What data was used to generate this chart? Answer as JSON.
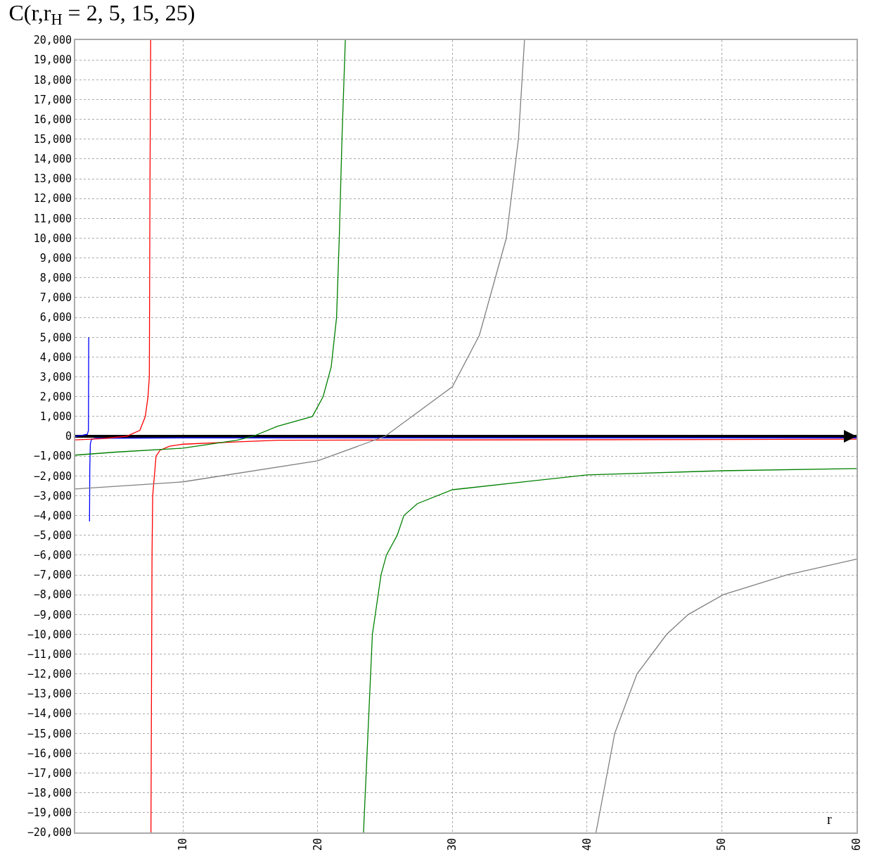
{
  "chart_data": {
    "type": "line",
    "title": "C(r,r$_{H}$ = 2, 5, 15, 25)",
    "xlabel": "r",
    "xlim": [
      2,
      60
    ],
    "xticks": [
      10,
      20,
      30,
      40,
      50,
      60
    ],
    "ylim": [
      -20000,
      20000
    ],
    "yticks": [
      {
        "value": 20000,
        "label": "20,000"
      },
      {
        "value": 19000,
        "label": "19,000"
      },
      {
        "value": 18000,
        "label": "18,000"
      },
      {
        "value": 17000,
        "label": "17,000"
      },
      {
        "value": 16000,
        "label": "16,000"
      },
      {
        "value": 15000,
        "label": "15,000"
      },
      {
        "value": 14000,
        "label": "14,000"
      },
      {
        "value": 13000,
        "label": "13,000"
      },
      {
        "value": 12000,
        "label": "12,000"
      },
      {
        "value": 11000,
        "label": "11,000"
      },
      {
        "value": 10000,
        "label": "10,000"
      },
      {
        "value": 9000,
        "label": "9,000"
      },
      {
        "value": 8000,
        "label": "8,000"
      },
      {
        "value": 7000,
        "label": "7,000"
      },
      {
        "value": 6000,
        "label": "6,000"
      },
      {
        "value": 5000,
        "label": "5,000"
      },
      {
        "value": 4000,
        "label": "4,000"
      },
      {
        "value": 3000,
        "label": "3,000"
      },
      {
        "value": 2000,
        "label": "2,000"
      },
      {
        "value": 1000,
        "label": "1,000"
      },
      0,
      {
        "value": -1000,
        "label": "−1,000"
      },
      {
        "value": -2000,
        "label": "−2,000"
      },
      {
        "value": -3000,
        "label": "−3,000"
      },
      {
        "value": -4000,
        "label": "−4,000"
      },
      {
        "value": -5000,
        "label": "−5,000"
      },
      {
        "value": -6000,
        "label": "−6,000"
      },
      {
        "value": -7000,
        "label": "−7,000"
      },
      {
        "value": -8000,
        "label": "−8,000"
      },
      {
        "value": -9000,
        "label": "−9,000"
      },
      {
        "value": -10000,
        "label": "−10,000"
      },
      {
        "value": -11000,
        "label": "−11,000"
      },
      {
        "value": -12000,
        "label": "−12,000"
      },
      {
        "value": -13000,
        "label": "−13,000"
      },
      {
        "value": -14000,
        "label": "−14,000"
      },
      {
        "value": -15000,
        "label": "−15,000"
      },
      {
        "value": -16000,
        "label": "−16,000"
      },
      {
        "value": -17000,
        "label": "−17,000"
      },
      {
        "value": -18000,
        "label": "−18,000"
      },
      {
        "value": -19000,
        "label": "−19,000"
      },
      {
        "value": -20000,
        "label": "−20,000"
      }
    ],
    "grid": true,
    "marker": "none",
    "line_style": "solid",
    "series": [
      {
        "color": "#0000ff",
        "x": [
          2,
          2.5,
          2.9,
          2.98,
          3.0,
          3.02,
          3.06,
          3.08,
          3.12,
          3.2,
          3.5,
          10,
          60
        ],
        "values": [
          0,
          50,
          100,
          300,
          5000,
          null,
          -4300,
          -1600,
          -400,
          -150,
          -100,
          -80,
          -80
        ]
      },
      {
        "color": "#ff0000",
        "x": [
          2,
          4,
          5.8,
          6.8,
          7.2,
          7.4,
          7.5,
          7.55,
          7.6,
          7.61,
          7.62,
          7.7,
          7.75,
          8,
          8.3,
          9,
          10,
          13.5,
          17,
          60
        ],
        "values": [
          -180,
          -120,
          0,
          300,
          1000,
          2000,
          3000,
          13000,
          20000,
          null,
          -20000,
          -6000,
          -3000,
          -1000,
          -700,
          -500,
          -400,
          -300,
          -200,
          -150
        ]
      },
      {
        "color": "#008000",
        "x": [
          2,
          5,
          10,
          14,
          15.2,
          17,
          19.6,
          20.4,
          21,
          21.4,
          21.6,
          21.8,
          22.05,
          22.5,
          23.4,
          24.06,
          24.7,
          25.1,
          25.9,
          26.4,
          27.4,
          30,
          40,
          50,
          60
        ],
        "values": [
          -950,
          -800,
          -600,
          -200,
          0,
          500,
          1000,
          2000,
          3500,
          6000,
          10000,
          15000,
          20000,
          null,
          -20000,
          -10000,
          -7000,
          -6000,
          -5000,
          -4000,
          -3400,
          -2700,
          -1950,
          -1740,
          -1630
        ]
      },
      {
        "color": "#808080",
        "x": [
          2,
          10,
          20,
          25,
          30,
          32,
          34,
          34.9,
          35.35,
          38,
          40.66,
          42.05,
          43.7,
          45.9,
          47.5,
          50.1,
          54.8,
          60
        ],
        "values": [
          -2660,
          -2300,
          -1240,
          0,
          2500,
          5100,
          10000,
          15000,
          20000,
          null,
          -20000,
          -15000,
          -12000,
          -10000,
          -9000,
          -8000,
          -7000,
          -6200
        ]
      }
    ]
  }
}
